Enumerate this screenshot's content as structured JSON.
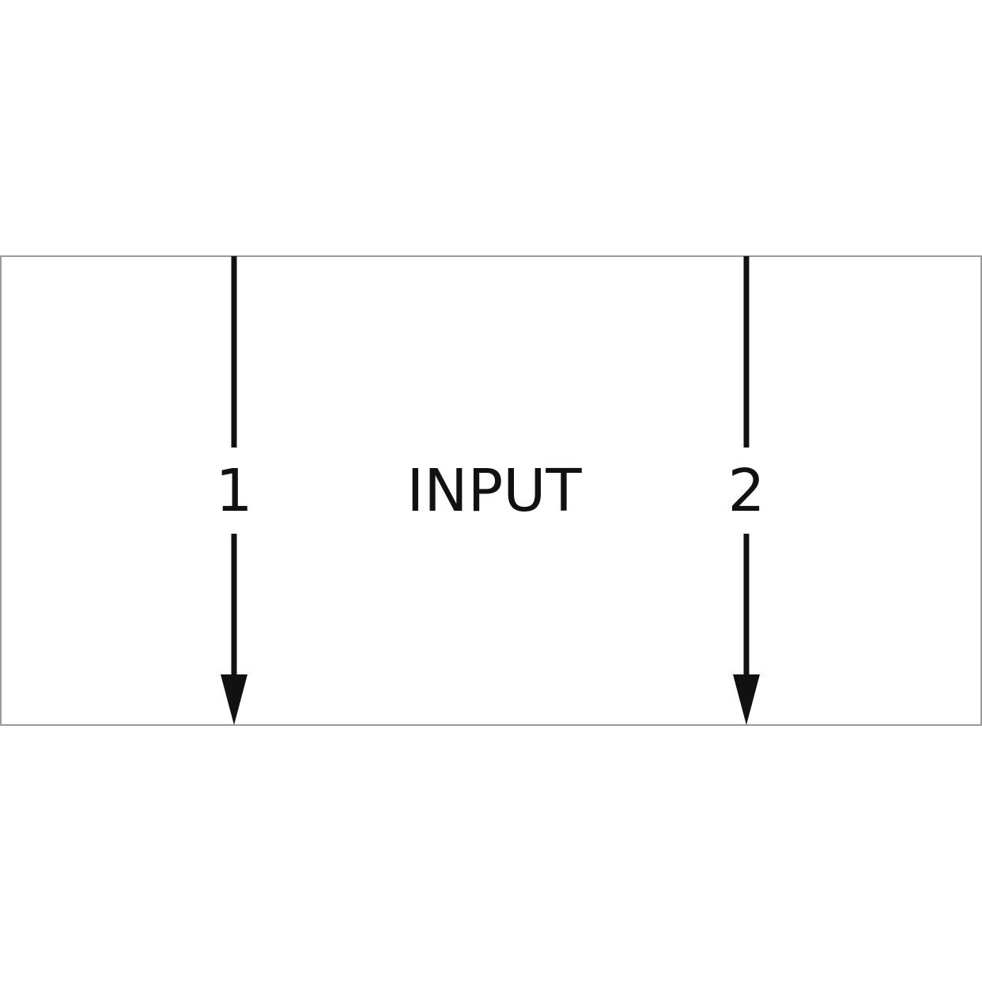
{
  "diagram": {
    "title": "INPUT",
    "terminals": [
      {
        "label": "1"
      },
      {
        "label": "2"
      }
    ]
  },
  "colors": {
    "stroke": "#111111",
    "box_border": "#9a9a9a",
    "background": "#ffffff"
  }
}
